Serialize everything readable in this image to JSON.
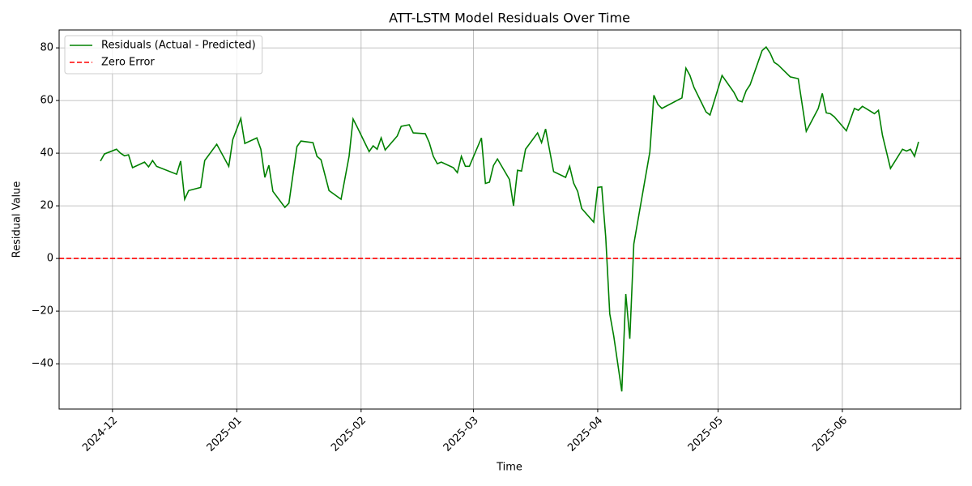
{
  "chart_data": {
    "type": "line",
    "title": "ATT-LSTM Model Residuals Over Time",
    "x_label": "Time",
    "y_label": "Residual Value",
    "grid": true,
    "legend": "upper left",
    "x": [
      -3,
      -2,
      1,
      2,
      3,
      4,
      5,
      8,
      9,
      10,
      11,
      16,
      17,
      18,
      19,
      22,
      23,
      26,
      29,
      30,
      32,
      33,
      36,
      37,
      38,
      39,
      40,
      43,
      44,
      46,
      47,
      50,
      51,
      52,
      54,
      57,
      59,
      60,
      61,
      64,
      65,
      66,
      67,
      68,
      71,
      72,
      74,
      75,
      78,
      79,
      80,
      81,
      82,
      85,
      86,
      87,
      88,
      89,
      92,
      93,
      94,
      95,
      96,
      99,
      100,
      101,
      102,
      103,
      106,
      107,
      108,
      110,
      113,
      114,
      115,
      116,
      117,
      120,
      121,
      122,
      123,
      124,
      125,
      127,
      128,
      129,
      130,
      134,
      135,
      136,
      137,
      142,
      143,
      144,
      145,
      148,
      149,
      152,
      155,
      156,
      157,
      158,
      159,
      162,
      163,
      164,
      165,
      166,
      169,
      171,
      173,
      176,
      177,
      178,
      179,
      180,
      183,
      185,
      186,
      187,
      190,
      191,
      192,
      194,
      197,
      198,
      199,
      200,
      201
    ],
    "series": [
      {
        "name": "Residuals (Actual - Predicted)",
        "color": "#008000",
        "values": [
          37,
          39.7,
          41.5,
          40,
          39,
          39.4,
          34.5,
          36.6,
          34.8,
          37.2,
          35,
          32,
          37,
          22.5,
          25.8,
          27,
          37.2,
          43.4,
          35,
          45.2,
          53.2,
          43.7,
          45.8,
          41.5,
          30.8,
          35.4,
          25.5,
          19.4,
          21,
          42.5,
          44.6,
          44,
          38.8,
          37.5,
          25.8,
          22.5,
          38.8,
          53,
          50,
          40.6,
          42.8,
          41.5,
          45.8,
          41.2,
          46.5,
          50.2,
          50.8,
          47.7,
          47.4,
          44,
          38.8,
          36,
          36.6,
          34.5,
          32.6,
          38.8,
          35,
          35,
          45.8,
          28.5,
          29,
          35.3,
          37.8,
          30,
          20,
          33.5,
          33.2,
          41.5,
          47.7,
          44,
          49.2,
          33,
          30.8,
          35,
          28.6,
          25.5,
          19,
          13.8,
          27,
          27.2,
          8,
          -21,
          -29.5,
          -50.5,
          -13.5,
          -30.5,
          5.5,
          40.5,
          62,
          58.5,
          57,
          61,
          72.3,
          69.5,
          65,
          55.7,
          54.5,
          69.5,
          63,
          60,
          59.5,
          63.7,
          66,
          79,
          80.3,
          78,
          74.5,
          73.5,
          69,
          68.3,
          48.3,
          57,
          62.7,
          55.3,
          55,
          53.8,
          48.5,
          57,
          56.3,
          57.8,
          55,
          56.3,
          46.8,
          34.2,
          41.5,
          40.8,
          41.5,
          38.8,
          44.3
        ]
      }
    ],
    "hlines": [
      {
        "name": "Zero Error",
        "value": 0,
        "color": "#ff0000",
        "style": "dashed"
      }
    ],
    "xlim": [
      -13.3,
      211.5
    ],
    "xticks": [
      {
        "value": 0,
        "label": "2024-12"
      },
      {
        "value": 31,
        "label": "2025-01"
      },
      {
        "value": 62,
        "label": "2025-02"
      },
      {
        "value": 90,
        "label": "2025-03"
      },
      {
        "value": 121,
        "label": "2025-04"
      },
      {
        "value": 151,
        "label": "2025-05"
      },
      {
        "value": 182,
        "label": "2025-06"
      }
    ],
    "ylim": [
      -57.2,
      86.8
    ],
    "yticks": [
      {
        "value": -40,
        "label": "−40"
      },
      {
        "value": -20,
        "label": "−20"
      },
      0,
      20,
      40,
      60,
      80
    ]
  }
}
